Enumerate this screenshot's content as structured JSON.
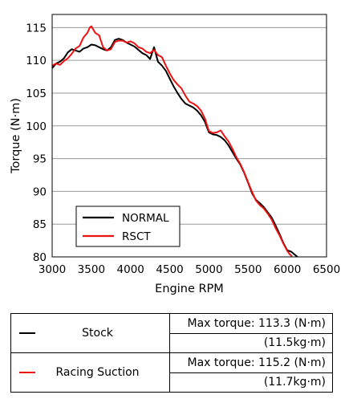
{
  "chart_data": {
    "type": "line",
    "xlabel": "Engine RPM",
    "ylabel": "Torque (N·m)",
    "xlim": [
      3000,
      6500
    ],
    "ylim": [
      80,
      117
    ],
    "xticks": [
      3000,
      3500,
      4000,
      4500,
      5000,
      5500,
      6000,
      6500
    ],
    "yticks": [
      80,
      85,
      90,
      95,
      100,
      105,
      110,
      115
    ],
    "grid": "horizontal",
    "legend_position": "bottom-left",
    "series": [
      {
        "name": "NORMAL",
        "color": "#000000",
        "x": [
          3000,
          3050,
          3100,
          3150,
          3200,
          3250,
          3300,
          3350,
          3400,
          3450,
          3500,
          3550,
          3600,
          3650,
          3700,
          3750,
          3800,
          3850,
          3900,
          3950,
          4000,
          4050,
          4100,
          4150,
          4200,
          4250,
          4280,
          4300,
          4350,
          4400,
          4450,
          4500,
          4550,
          4600,
          4650,
          4700,
          4750,
          4800,
          4850,
          4900,
          4950,
          5000,
          5050,
          5100,
          5150,
          5200,
          5250,
          5300,
          5350,
          5400,
          5450,
          5500,
          5550,
          5600,
          5650,
          5700,
          5750,
          5800,
          5850,
          5900,
          5950,
          6000,
          6050,
          6100,
          6130
        ],
        "y": [
          108.8,
          109.5,
          109.8,
          110.3,
          111.2,
          111.7,
          111.5,
          111.3,
          111.8,
          112.0,
          112.4,
          112.3,
          112.0,
          111.7,
          111.5,
          112.0,
          113.1,
          113.3,
          113.1,
          112.7,
          112.4,
          112.1,
          111.6,
          111.1,
          110.8,
          110.2,
          111.3,
          112.0,
          109.8,
          109.2,
          108.4,
          107.2,
          106.0,
          105.0,
          104.1,
          103.4,
          103.1,
          102.8,
          102.3,
          101.6,
          100.6,
          99.0,
          98.7,
          98.6,
          98.3,
          97.8,
          97.0,
          96.0,
          95.0,
          94.1,
          92.8,
          91.3,
          89.7,
          88.7,
          88.2,
          87.6,
          86.8,
          86.0,
          84.8,
          83.5,
          82.1,
          81.0,
          80.8,
          80.3,
          80.0
        ]
      },
      {
        "name": "RSCT",
        "color": "#ee1111",
        "x": [
          3000,
          3050,
          3100,
          3150,
          3200,
          3250,
          3300,
          3350,
          3400,
          3450,
          3480,
          3500,
          3550,
          3600,
          3650,
          3700,
          3750,
          3800,
          3850,
          3900,
          3950,
          4000,
          4050,
          4100,
          4150,
          4200,
          4250,
          4300,
          4350,
          4400,
          4450,
          4500,
          4550,
          4600,
          4650,
          4700,
          4750,
          4800,
          4850,
          4900,
          4950,
          5000,
          5050,
          5100,
          5150,
          5200,
          5250,
          5300,
          5350,
          5400,
          5450,
          5500,
          5550,
          5600,
          5650,
          5700,
          5750,
          5800,
          5850,
          5900,
          5950,
          6000,
          6030,
          6060
        ],
        "y": [
          109.2,
          109.5,
          109.3,
          109.9,
          110.3,
          111.0,
          111.8,
          112.2,
          113.5,
          114.2,
          115.0,
          115.2,
          114.2,
          113.8,
          112.0,
          111.5,
          111.7,
          112.8,
          113.0,
          113.0,
          112.7,
          112.9,
          112.6,
          112.0,
          111.8,
          111.3,
          111.1,
          111.6,
          110.8,
          110.5,
          109.2,
          108.0,
          107.0,
          106.3,
          105.7,
          104.6,
          103.7,
          103.4,
          103.0,
          102.3,
          101.1,
          99.2,
          98.9,
          99.0,
          99.3,
          98.4,
          97.6,
          96.5,
          95.2,
          94.2,
          92.9,
          91.4,
          89.9,
          88.6,
          87.9,
          87.4,
          86.6,
          85.7,
          84.4,
          83.3,
          82.0,
          80.9,
          80.4,
          80.1
        ]
      }
    ]
  },
  "summary_table": {
    "rows": [
      {
        "name": "Stock",
        "color": "#000000",
        "max_torque": "Max torque: 113.3 (N·m)",
        "kg": "(11.5kg·m)"
      },
      {
        "name": "Racing Suction",
        "color": "#ee1111",
        "max_torque": "Max torque: 115.2 (N·m)",
        "kg": "(11.7kg·m)"
      }
    ]
  }
}
